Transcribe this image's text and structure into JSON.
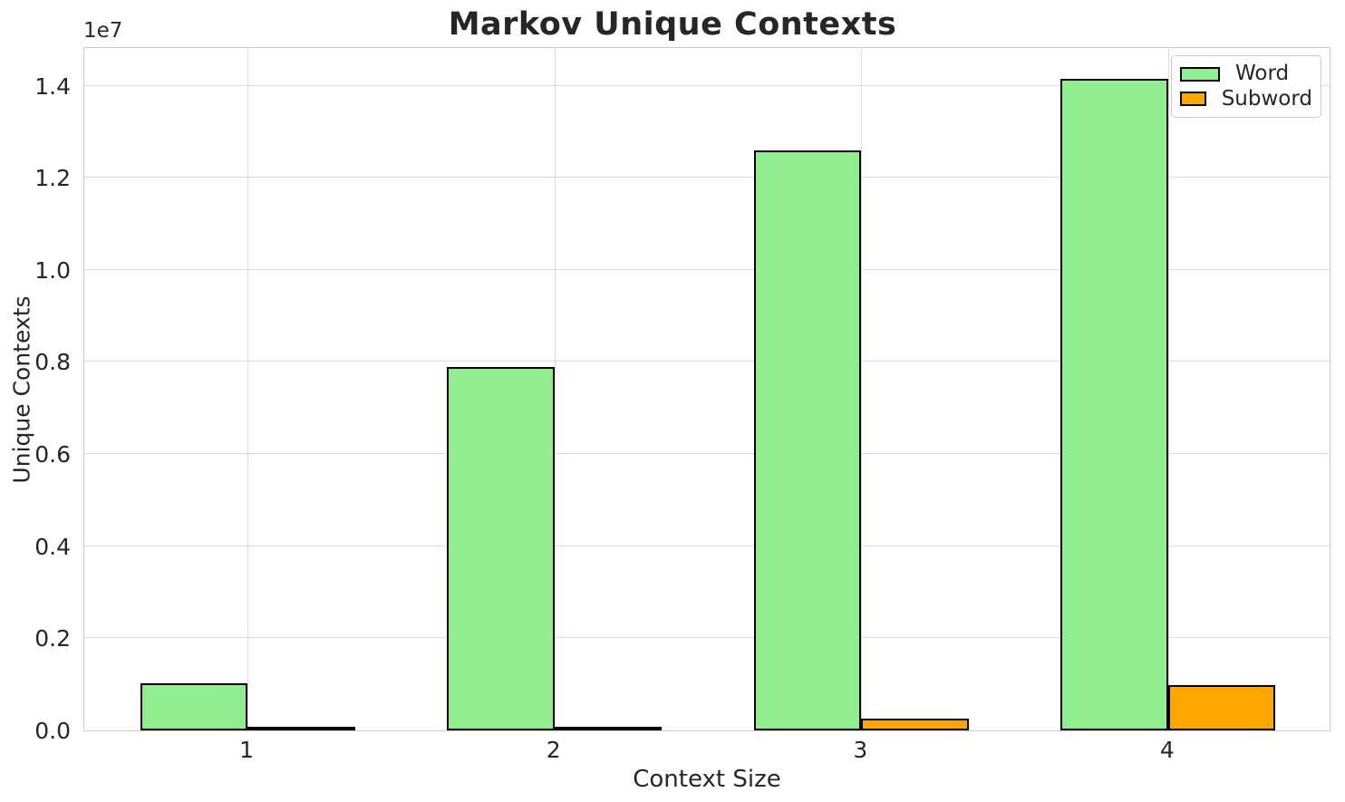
{
  "chart_data": {
    "type": "bar",
    "title": "Markov Unique Contexts",
    "xlabel": "Context Size",
    "ylabel": "Unique Contexts",
    "y_offset_label": "1e7",
    "categories": [
      "1",
      "2",
      "3",
      "4"
    ],
    "x": [
      1,
      2,
      3,
      4
    ],
    "series": [
      {
        "name": "Word",
        "color": "#90ee90",
        "values": [
          1030000,
          7900000,
          12600000,
          14150000
        ]
      },
      {
        "name": "Subword",
        "color": "#ffa500",
        "values": [
          30000,
          80000,
          250000,
          990000
        ]
      }
    ],
    "bar_width": 0.35,
    "bar_edge_color": "#000000",
    "xlim": [
      0.468,
      4.532
    ],
    "ylim": [
      0,
      14857500
    ],
    "yticks": [
      0,
      2000000,
      4000000,
      6000000,
      8000000,
      10000000,
      12000000,
      14000000
    ],
    "ytick_labels": [
      "0.0",
      "0.2",
      "0.4",
      "0.6",
      "0.8",
      "1.0",
      "1.2",
      "1.4"
    ],
    "grid": true,
    "legend_position": "upper right",
    "colors": {
      "grid": "#dcdcdc",
      "spine": "#cccccc",
      "text": "#262626",
      "background": "#ffffff"
    }
  }
}
